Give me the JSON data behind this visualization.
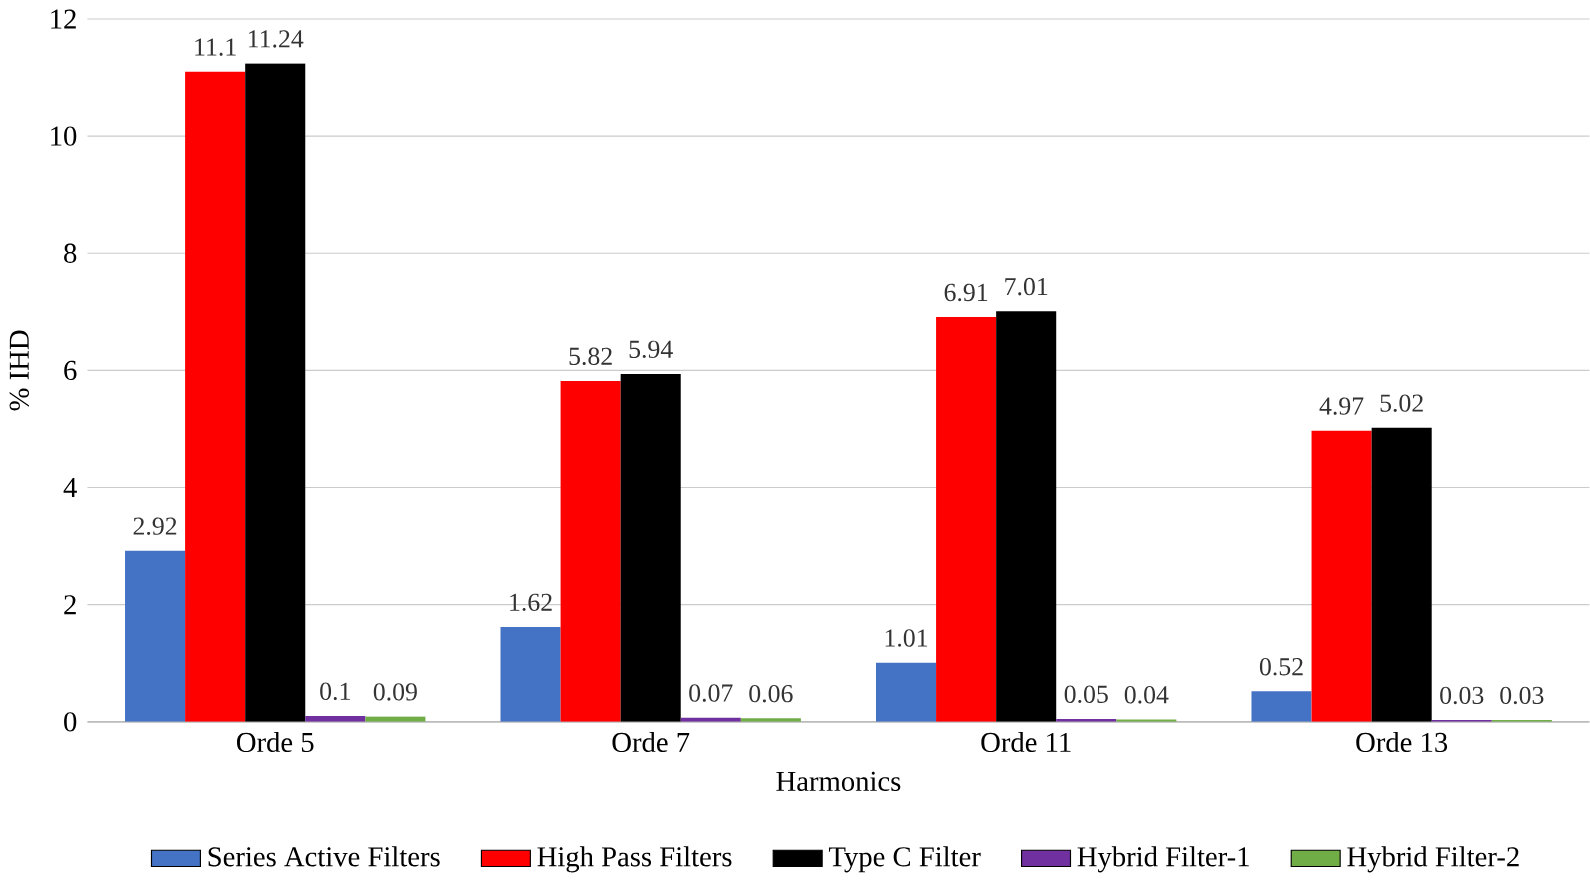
{
  "chart_data": {
    "type": "bar",
    "xlabel": "Harmonics",
    "ylabel": "% IHD",
    "categories": [
      "Orde 5",
      "Orde 7",
      "Orde 11",
      "Orde 13"
    ],
    "series": [
      {
        "name": "Series Active Filters",
        "color": "#4472c4",
        "values": [
          2.92,
          1.62,
          1.01,
          0.52
        ]
      },
      {
        "name": "High Pass Filters",
        "color": "#ff0000",
        "values": [
          11.1,
          5.82,
          6.91,
          4.97
        ]
      },
      {
        "name": "Type C Filter",
        "color": "#000000",
        "values": [
          11.24,
          5.94,
          7.01,
          5.02
        ]
      },
      {
        "name": "Hybrid Filter-1",
        "color": "#7030a0",
        "values": [
          0.1,
          0.07,
          0.05,
          0.03
        ]
      },
      {
        "name": "Hybrid Filter-2",
        "color": "#70ad47",
        "values": [
          0.09,
          0.06,
          0.04,
          0.03
        ]
      }
    ],
    "ylim": [
      0,
      12
    ],
    "yticks": [
      0,
      2,
      4,
      6,
      8,
      10,
      12
    ],
    "grid": "y",
    "legend": "bottom",
    "data_labels": true
  }
}
